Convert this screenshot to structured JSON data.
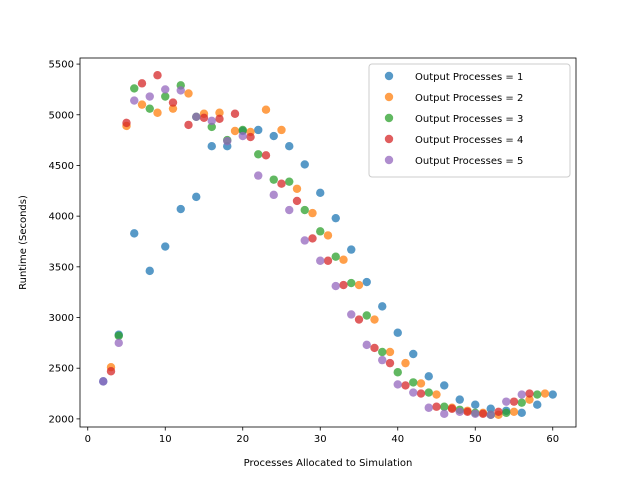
{
  "chart_data": {
    "type": "scatter",
    "xlabel": "Processes Allocated to Simulation",
    "ylabel": "Runtime (Seconds)",
    "xlim": [
      -1,
      63
    ],
    "ylim": [
      1920,
      5560
    ],
    "xticks": [
      0,
      10,
      20,
      30,
      40,
      50,
      60
    ],
    "yticks": [
      2000,
      2500,
      3000,
      3500,
      4000,
      4500,
      5000,
      5500
    ],
    "grid": false,
    "legend": "top-right",
    "series": [
      {
        "name": "Output Processes = 1",
        "color": "#1f77b4",
        "points": [
          [
            2,
            2370
          ],
          [
            4,
            2830
          ],
          [
            6,
            3830
          ],
          [
            8,
            3460
          ],
          [
            10,
            3700
          ],
          [
            12,
            4070
          ],
          [
            14,
            4190
          ],
          [
            16,
            4690
          ],
          [
            18,
            4690
          ],
          [
            20,
            4840
          ],
          [
            22,
            4850
          ],
          [
            24,
            4790
          ],
          [
            26,
            4690
          ],
          [
            28,
            4510
          ],
          [
            30,
            4230
          ],
          [
            32,
            3980
          ],
          [
            34,
            3670
          ],
          [
            36,
            3350
          ],
          [
            38,
            3110
          ],
          [
            40,
            2850
          ],
          [
            42,
            2640
          ],
          [
            44,
            2420
          ],
          [
            46,
            2330
          ],
          [
            48,
            2190
          ],
          [
            50,
            2140
          ],
          [
            52,
            2100
          ],
          [
            54,
            2080
          ],
          [
            56,
            2060
          ],
          [
            58,
            2140
          ],
          [
            60,
            2240
          ]
        ]
      },
      {
        "name": "Output Processes = 2",
        "color": "#ff7f0e",
        "points": [
          [
            3,
            2510
          ],
          [
            5,
            4890
          ],
          [
            7,
            5100
          ],
          [
            9,
            5020
          ],
          [
            11,
            5060
          ],
          [
            13,
            5210
          ],
          [
            15,
            5010
          ],
          [
            17,
            5020
          ],
          [
            19,
            4840
          ],
          [
            21,
            4830
          ],
          [
            23,
            5050
          ],
          [
            25,
            4850
          ],
          [
            27,
            4270
          ],
          [
            29,
            4030
          ],
          [
            31,
            3810
          ],
          [
            33,
            3570
          ],
          [
            35,
            3320
          ],
          [
            37,
            2980
          ],
          [
            39,
            2660
          ],
          [
            41,
            2550
          ],
          [
            43,
            2350
          ],
          [
            45,
            2240
          ],
          [
            47,
            2110
          ],
          [
            49,
            2080
          ],
          [
            51,
            2060
          ],
          [
            53,
            2040
          ],
          [
            55,
            2070
          ],
          [
            57,
            2190
          ],
          [
            59,
            2250
          ]
        ]
      },
      {
        "name": "Output Processes = 3",
        "color": "#2ca02c",
        "points": [
          [
            4,
            2820
          ],
          [
            6,
            5260
          ],
          [
            8,
            5060
          ],
          [
            10,
            5180
          ],
          [
            12,
            5290
          ],
          [
            14,
            4980
          ],
          [
            16,
            4880
          ],
          [
            18,
            4750
          ],
          [
            20,
            4850
          ],
          [
            22,
            4610
          ],
          [
            24,
            4360
          ],
          [
            26,
            4340
          ],
          [
            28,
            4060
          ],
          [
            30,
            3850
          ],
          [
            32,
            3600
          ],
          [
            34,
            3340
          ],
          [
            36,
            3020
          ],
          [
            38,
            2660
          ],
          [
            40,
            2460
          ],
          [
            42,
            2360
          ],
          [
            44,
            2260
          ],
          [
            46,
            2120
          ],
          [
            48,
            2090
          ],
          [
            50,
            2060
          ],
          [
            52,
            2040
          ],
          [
            54,
            2060
          ],
          [
            56,
            2160
          ],
          [
            58,
            2240
          ]
        ]
      },
      {
        "name": "Output Processes = 4",
        "color": "#d62728",
        "points": [
          [
            3,
            2470
          ],
          [
            5,
            4920
          ],
          [
            7,
            5310
          ],
          [
            9,
            5390
          ],
          [
            11,
            5120
          ],
          [
            13,
            4900
          ],
          [
            15,
            4970
          ],
          [
            17,
            4960
          ],
          [
            19,
            5010
          ],
          [
            21,
            4780
          ],
          [
            23,
            4600
          ],
          [
            25,
            4320
          ],
          [
            27,
            4150
          ],
          [
            29,
            3780
          ],
          [
            31,
            3560
          ],
          [
            33,
            3320
          ],
          [
            35,
            2980
          ],
          [
            37,
            2700
          ],
          [
            39,
            2550
          ],
          [
            41,
            2330
          ],
          [
            43,
            2250
          ],
          [
            45,
            2120
          ],
          [
            47,
            2100
          ],
          [
            49,
            2070
          ],
          [
            51,
            2050
          ],
          [
            53,
            2070
          ],
          [
            55,
            2170
          ],
          [
            57,
            2250
          ]
        ]
      },
      {
        "name": "Output Processes = 5",
        "color": "#9467bd",
        "points": [
          [
            2,
            2370
          ],
          [
            4,
            2750
          ],
          [
            6,
            5140
          ],
          [
            8,
            5180
          ],
          [
            10,
            5250
          ],
          [
            12,
            5240
          ],
          [
            14,
            4980
          ],
          [
            16,
            4940
          ],
          [
            18,
            4740
          ],
          [
            20,
            4790
          ],
          [
            22,
            4400
          ],
          [
            24,
            4210
          ],
          [
            26,
            4060
          ],
          [
            28,
            3760
          ],
          [
            30,
            3560
          ],
          [
            32,
            3310
          ],
          [
            34,
            3030
          ],
          [
            36,
            2730
          ],
          [
            38,
            2580
          ],
          [
            40,
            2340
          ],
          [
            42,
            2260
          ],
          [
            44,
            2110
          ],
          [
            46,
            2050
          ],
          [
            48,
            2070
          ],
          [
            50,
            2050
          ],
          [
            52,
            2040
          ],
          [
            54,
            2170
          ],
          [
            56,
            2240
          ]
        ]
      }
    ]
  }
}
